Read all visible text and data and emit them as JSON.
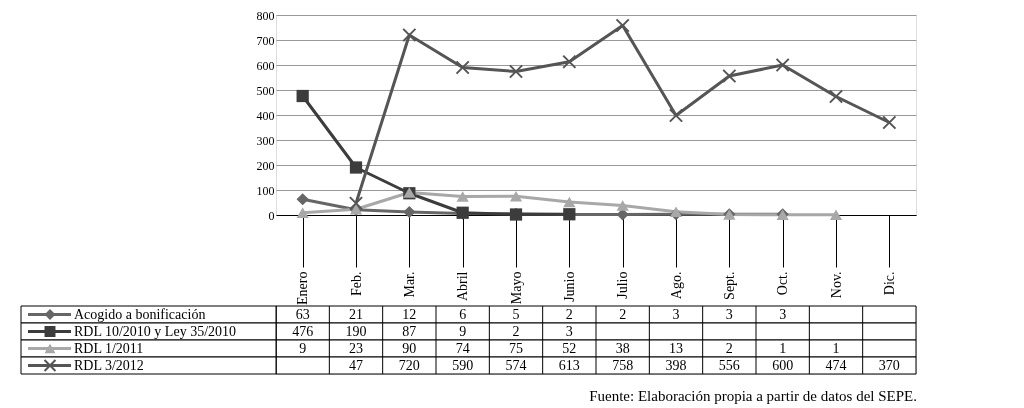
{
  "chart_data": {
    "type": "line",
    "categories": [
      "Enero",
      "Feb.",
      "Mar.",
      "Abril",
      "Mayo",
      "Junio",
      "Julio",
      "Ago.",
      "Sept.",
      "Oct.",
      "Nov.",
      "Dic."
    ],
    "series": [
      {
        "name": "Acogido a bonificación",
        "color": "#666666",
        "marker": "diamond",
        "values": [
          63,
          21,
          12,
          6,
          5,
          2,
          2,
          3,
          3,
          3,
          null,
          null
        ]
      },
      {
        "name": "RDL 10/2010 y Ley 35/2010",
        "color": "#3c3c3c",
        "marker": "square",
        "values": [
          476,
          190,
          87,
          9,
          2,
          3,
          null,
          null,
          null,
          null,
          null,
          null
        ]
      },
      {
        "name": "RDL 1/2011",
        "color": "#a8a8a8",
        "marker": "triangle",
        "values": [
          9,
          23,
          90,
          74,
          75,
          52,
          38,
          13,
          2,
          1,
          1,
          null
        ]
      },
      {
        "name": "RDL 3/2012",
        "color": "#555555",
        "marker": "cross",
        "values": [
          null,
          47,
          720,
          590,
          574,
          613,
          758,
          398,
          556,
          600,
          474,
          370
        ]
      }
    ],
    "ylim": [
      0,
      800
    ],
    "yticks": [
      0,
      100,
      200,
      300,
      400,
      500,
      600,
      700,
      800
    ],
    "grid": "y",
    "data_labels": true,
    "legend": "bottom",
    "annotations": [
      "Fuente: Elaboración propia a partir de datos del SEPE."
    ]
  }
}
